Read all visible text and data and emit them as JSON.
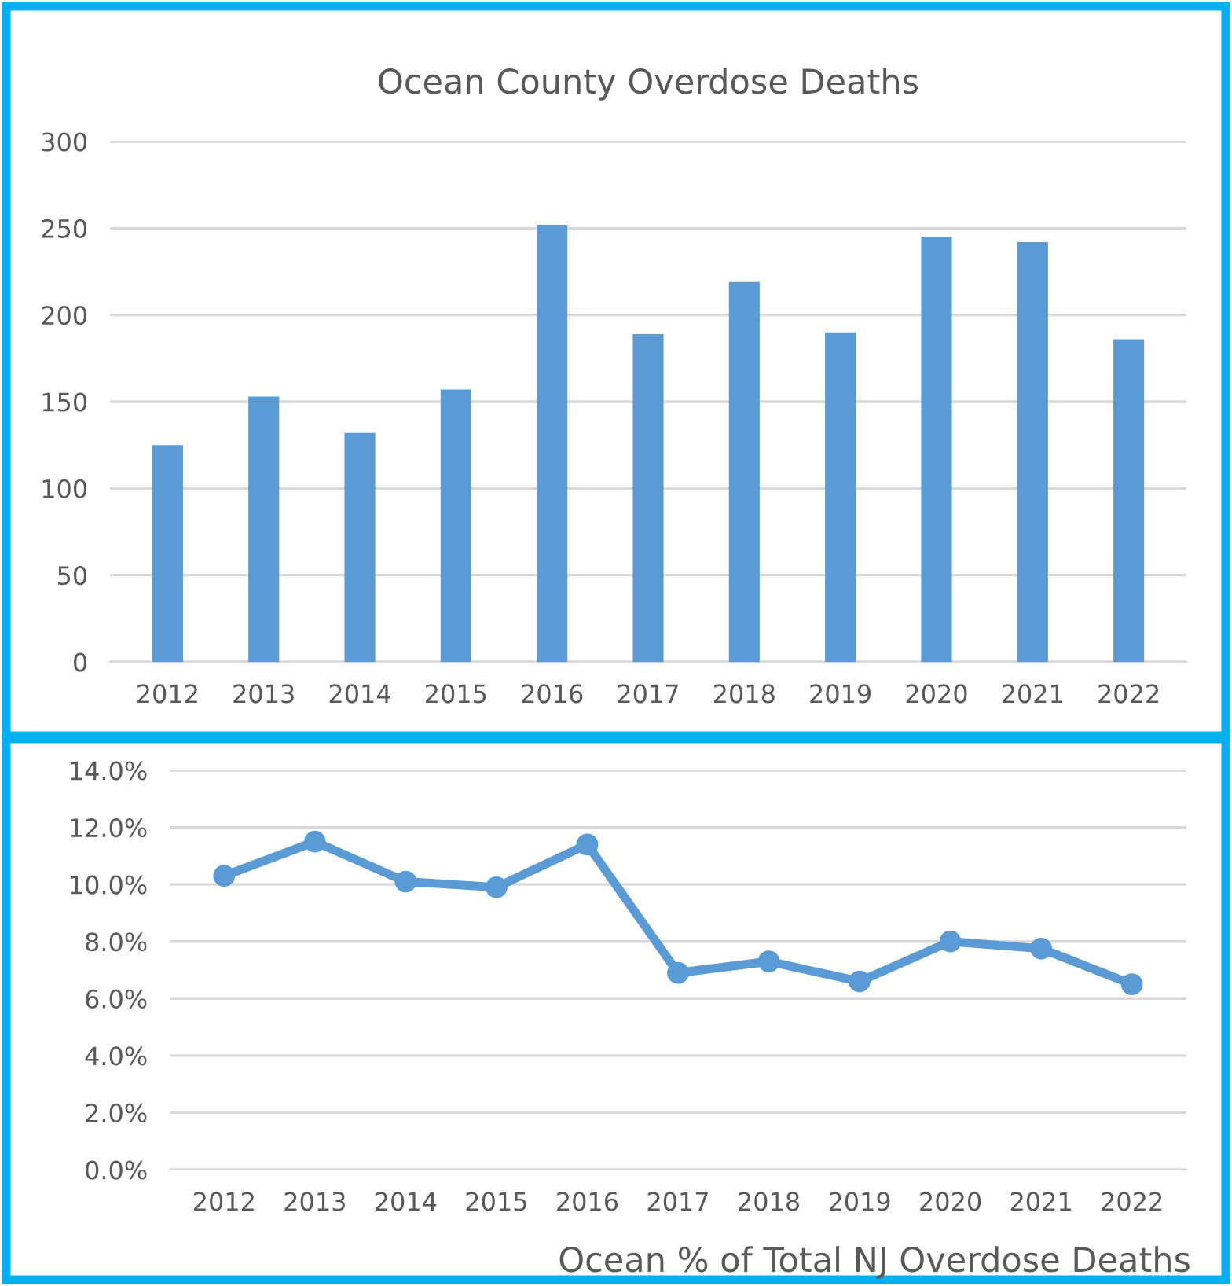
{
  "chart_data": [
    {
      "type": "bar",
      "title": "Ocean County Overdose Deaths",
      "categories": [
        "2012",
        "2013",
        "2014",
        "2015",
        "2016",
        "2017",
        "2018",
        "2019",
        "2020",
        "2021",
        "2022"
      ],
      "values": [
        125,
        153,
        132,
        157,
        252,
        189,
        219,
        190,
        245,
        242,
        186
      ],
      "color": "#5b9bd5",
      "ylim": [
        0,
        300
      ],
      "yticks": [
        0,
        50,
        100,
        150,
        200,
        250,
        300
      ],
      "grid": "y"
    },
    {
      "type": "line",
      "title": "Ocean % of Total NJ Overdose Deaths",
      "categories": [
        "2012",
        "2013",
        "2014",
        "2015",
        "2016",
        "2017",
        "2018",
        "2019",
        "2020",
        "2021",
        "2022"
      ],
      "values": [
        10.3,
        11.5,
        10.1,
        9.9,
        11.4,
        6.9,
        7.3,
        6.6,
        8.0,
        7.75,
        6.5
      ],
      "color": "#5b9bd5",
      "marker": "circle",
      "line_style": "solid",
      "ylim": [
        0,
        14
      ],
      "yticks": [
        {
          "value": 0,
          "label": "0.0%"
        },
        {
          "value": 2,
          "label": "2.0%"
        },
        {
          "value": 4,
          "label": "4.0%"
        },
        {
          "value": 6,
          "label": "6.0%"
        },
        {
          "value": 8,
          "label": "8.0%"
        },
        {
          "value": 10,
          "label": "10.0%"
        },
        {
          "value": 12,
          "label": "12.0%"
        },
        {
          "value": 14,
          "label": "14.0%"
        }
      ],
      "grid": "y"
    }
  ]
}
